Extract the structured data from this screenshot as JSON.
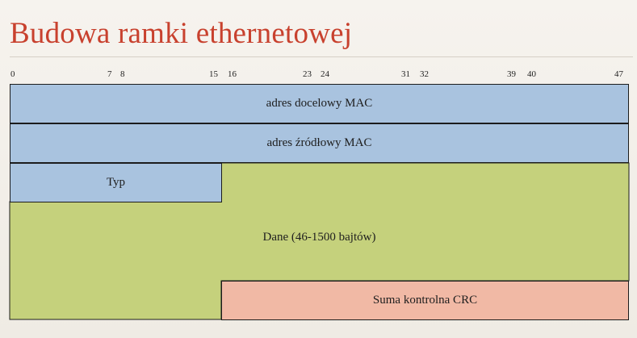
{
  "title": "Budowa ramki ethernetowej",
  "bit_labels": [
    "0",
    "7",
    "8",
    "15",
    "16",
    "23",
    "24",
    "31",
    "32",
    "39",
    "40",
    "47"
  ],
  "fields": {
    "dest_mac": "adres docelowy MAC",
    "src_mac": "adres źródłowy MAC",
    "type": "Typ",
    "data": "Dane (46-1500 bajtów)",
    "crc": "Suma kontrolna CRC"
  },
  "colors": {
    "title": "#c8412e",
    "header_fields": "#a9c3df",
    "data": "#c5d17c",
    "crc": "#f1b9a5"
  }
}
